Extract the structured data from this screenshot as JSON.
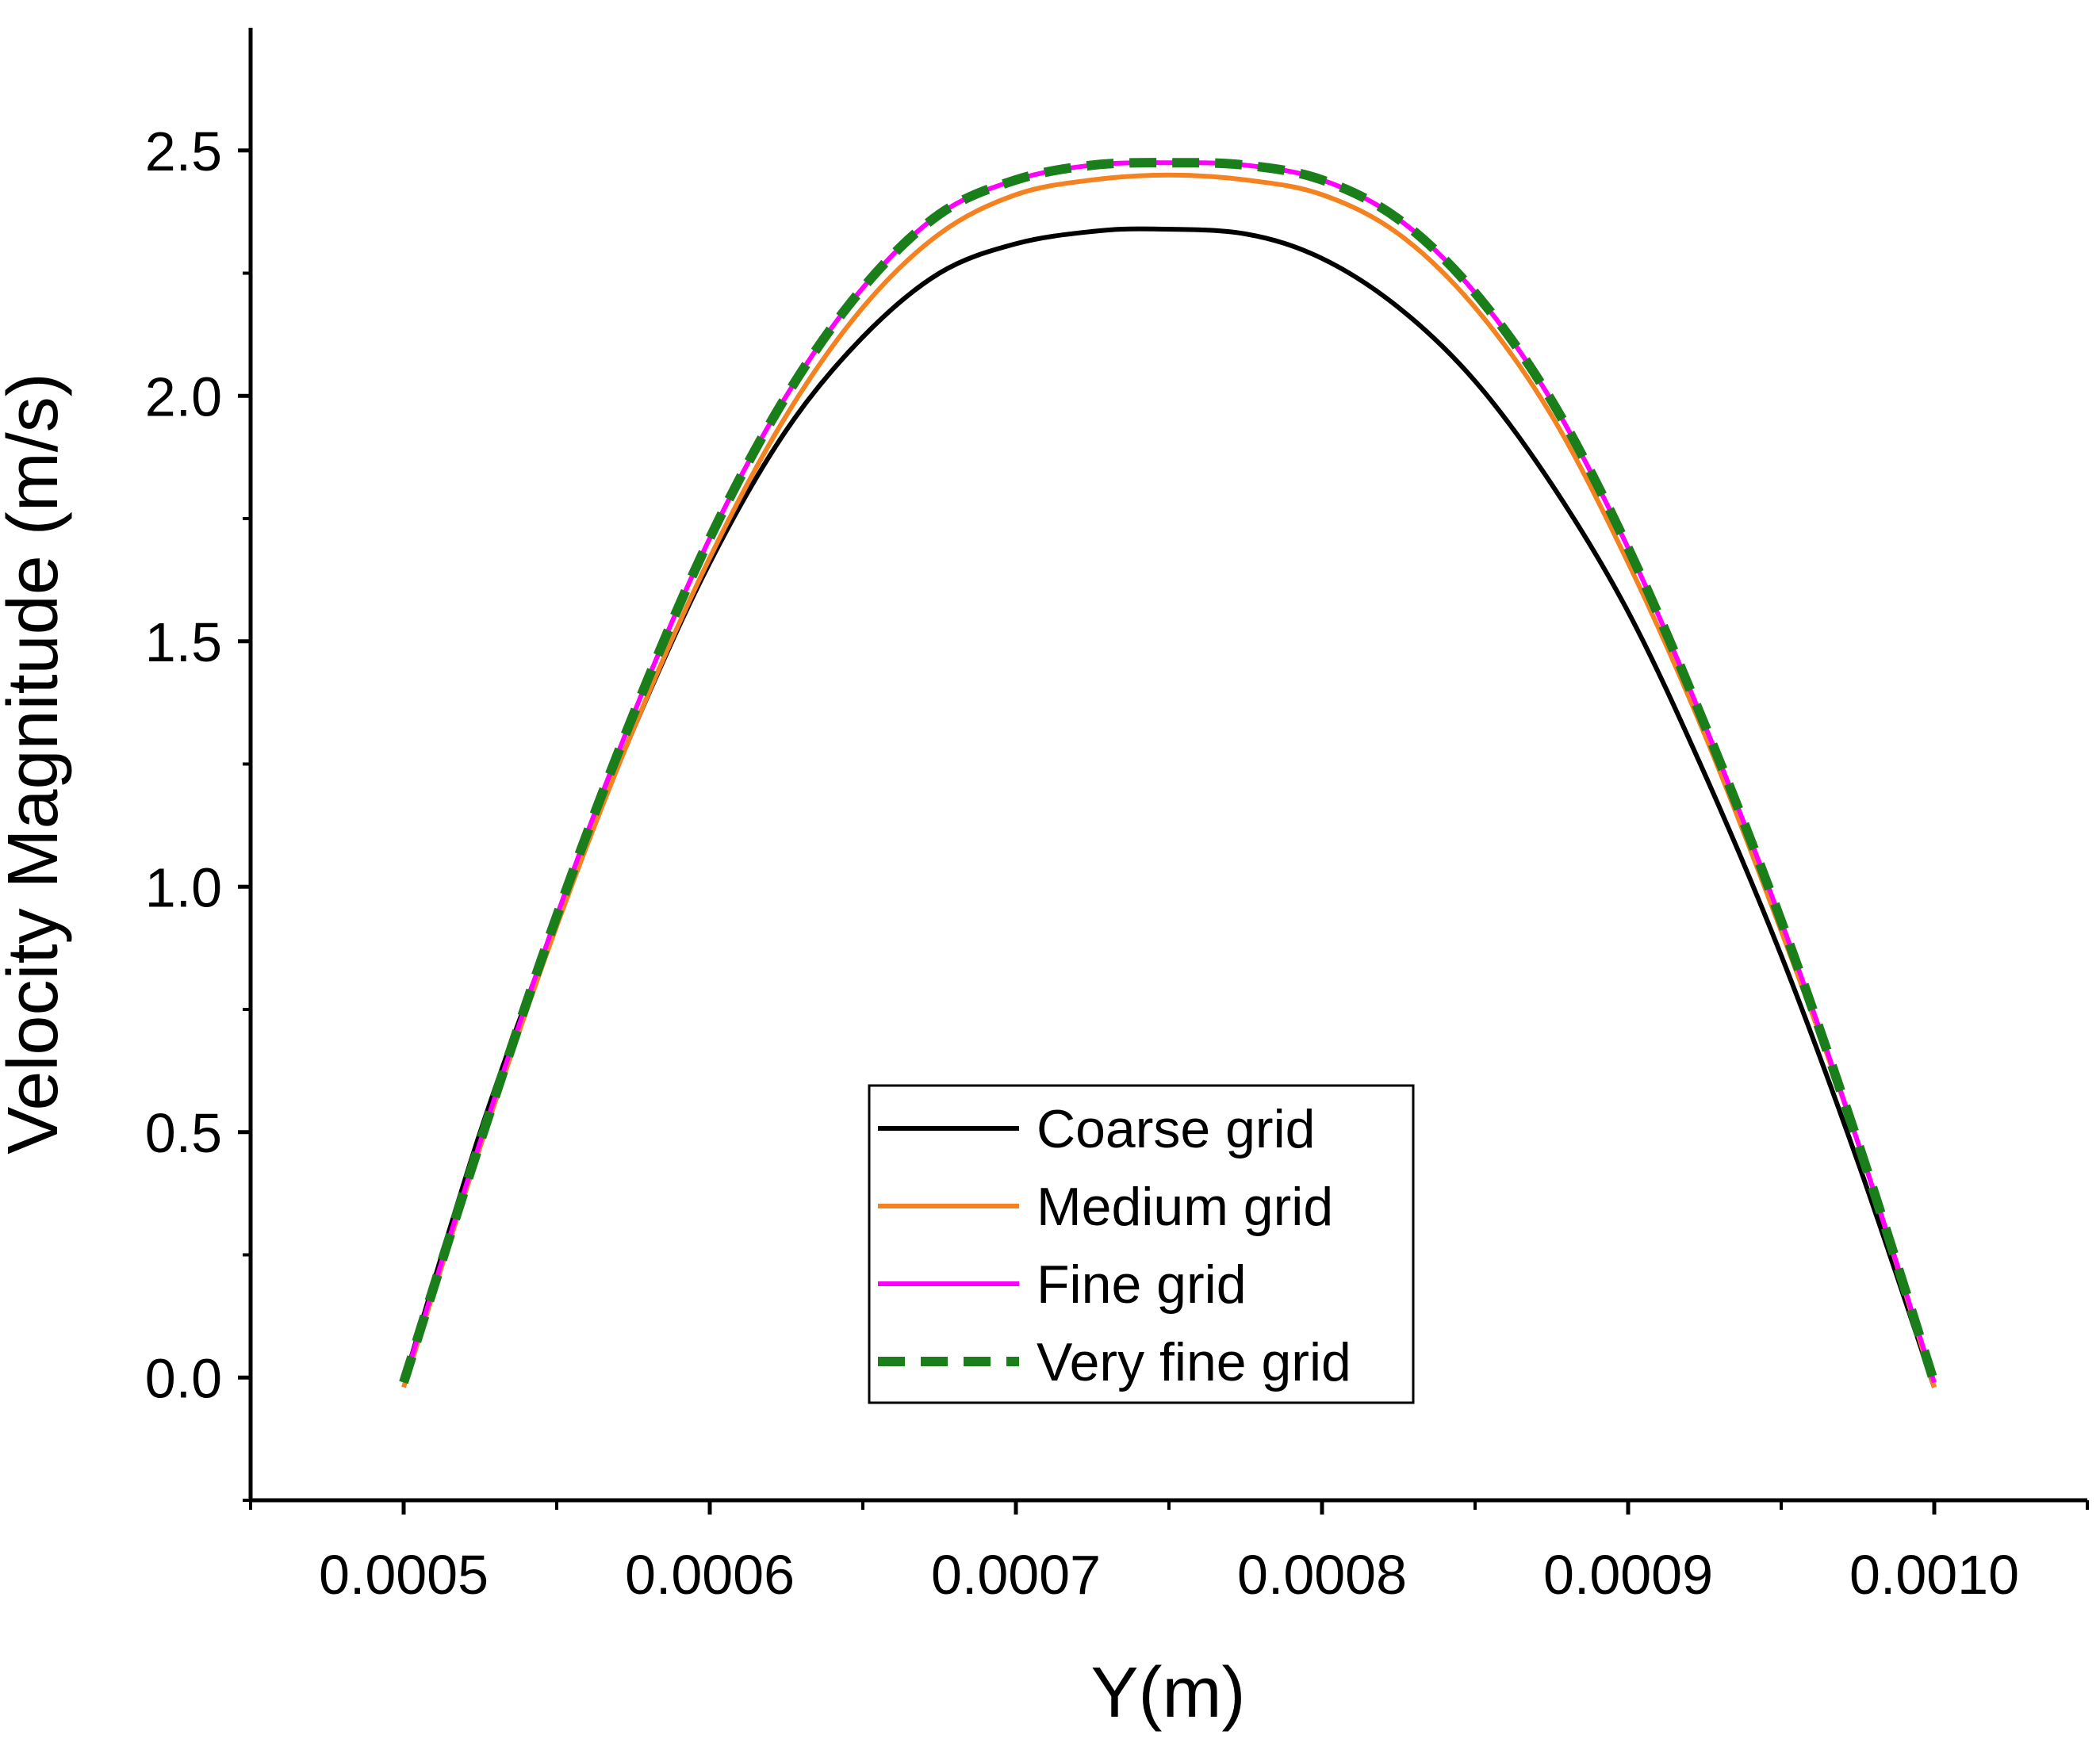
{
  "chart_data": {
    "type": "line",
    "title": "",
    "xlabel": "Y(m)",
    "ylabel": "Velocity Magnitude (m/s)",
    "xlim": [
      0.00045,
      0.00105
    ],
    "ylim": [
      -0.25,
      2.75
    ],
    "xticks": [
      0.0005,
      0.0006,
      0.0007,
      0.0008,
      0.0009,
      0.001
    ],
    "xtick_labels": [
      "0.0005",
      "0.0006",
      "0.0007",
      "0.0008",
      "0.0009",
      "0.0010"
    ],
    "yticks": [
      0.0,
      0.5,
      1.0,
      1.5,
      2.0,
      2.5
    ],
    "ytick_labels": [
      "0.0",
      "0.5",
      "1.0",
      "1.5",
      "2.0",
      "2.5"
    ],
    "grid": false,
    "legend_position": "bottom-center",
    "series": [
      {
        "name": "Coarse grid",
        "color": "#000000",
        "style": "solid",
        "x": [
          0.0005,
          0.000525,
          0.00055,
          0.000575,
          0.0006,
          0.000625,
          0.00065,
          0.000675,
          0.0007,
          0.000725,
          0.000745,
          0.000775,
          0.0008,
          0.000825,
          0.00085,
          0.000875,
          0.0009,
          0.000925,
          0.00095,
          0.000975,
          0.001
        ],
        "y": [
          -0.01,
          0.5,
          0.93,
          1.32,
          1.66,
          1.93,
          2.12,
          2.25,
          2.31,
          2.335,
          2.34,
          2.33,
          2.28,
          2.18,
          2.03,
          1.82,
          1.56,
          1.23,
          0.86,
          0.44,
          -0.02
        ]
      },
      {
        "name": "Medium grid",
        "color": "#f58220",
        "style": "solid",
        "x": [
          0.0005,
          0.000525,
          0.00055,
          0.000575,
          0.0006,
          0.000625,
          0.00065,
          0.000675,
          0.0007,
          0.000725,
          0.00075,
          0.000775,
          0.0008,
          0.000825,
          0.00085,
          0.000875,
          0.0009,
          0.000925,
          0.00095,
          0.000975,
          0.001
        ],
        "y": [
          -0.02,
          0.47,
          0.92,
          1.32,
          1.67,
          1.96,
          2.18,
          2.33,
          2.41,
          2.44,
          2.45,
          2.44,
          2.41,
          2.33,
          2.18,
          1.96,
          1.66,
          1.31,
          0.91,
          0.48,
          -0.02
        ]
      },
      {
        "name": "Fine grid",
        "color": "#ff00ff",
        "style": "solid",
        "x": [
          0.0005,
          0.000525,
          0.00055,
          0.000575,
          0.0006,
          0.000625,
          0.00065,
          0.000675,
          0.0007,
          0.000725,
          0.00075,
          0.000775,
          0.0008,
          0.000825,
          0.00085,
          0.000875,
          0.0009,
          0.000925,
          0.00095,
          0.000975,
          0.001
        ],
        "y": [
          -0.01,
          0.48,
          0.94,
          1.35,
          1.71,
          2.0,
          2.22,
          2.37,
          2.44,
          2.47,
          2.475,
          2.47,
          2.44,
          2.36,
          2.21,
          1.99,
          1.69,
          1.33,
          0.93,
          0.48,
          -0.01
        ]
      },
      {
        "name": "Very fine grid",
        "color": "#1a7f1a",
        "style": "dashed",
        "x": [
          0.0005,
          0.000525,
          0.00055,
          0.000575,
          0.0006,
          0.000625,
          0.00065,
          0.000675,
          0.0007,
          0.000725,
          0.00075,
          0.000775,
          0.0008,
          0.000825,
          0.00085,
          0.000875,
          0.0009,
          0.000925,
          0.00095,
          0.000975,
          0.001
        ],
        "y": [
          -0.01,
          0.48,
          0.94,
          1.35,
          1.71,
          2.0,
          2.22,
          2.37,
          2.44,
          2.47,
          2.475,
          2.47,
          2.44,
          2.36,
          2.21,
          1.99,
          1.69,
          1.33,
          0.93,
          0.48,
          -0.01
        ]
      }
    ]
  }
}
